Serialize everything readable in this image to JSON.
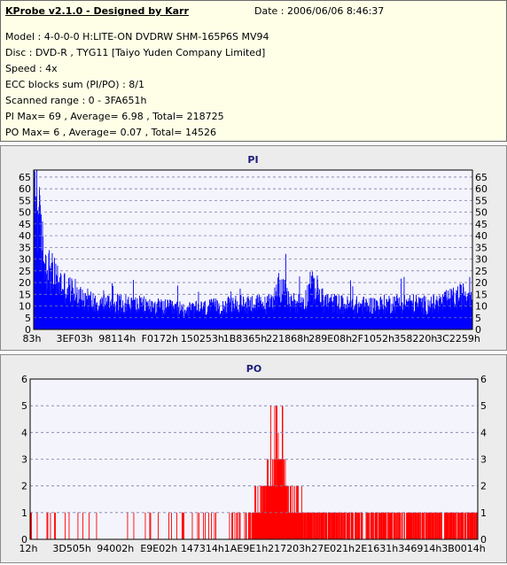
{
  "info": {
    "title": "KProbe v2.1.0 - Designed by Karr",
    "date": "Date : 2006/06/06 8:46:37",
    "lines": [
      "Model : 4-0-0-0 H:LITE-ON DVDRW SHM-165P6S MV94",
      "Disc : DVD-R , TYG11 [Taiyo Yuden Company Limited]",
      "Speed : 4x",
      "ECC blocks sum (PI/PO) : 8/1",
      "Scanned range : 0 - 3FA651h",
      "PI Max= 69 , Average= 6.98 , Total= 218725",
      "PO Max= 6 , Average= 0.07 , Total= 14526"
    ]
  },
  "colors": {
    "info_bg": "#ffffe8",
    "panel_bg": "#ececec",
    "plot_bg": "#f4f4fc",
    "pi_bar": "#0000ff",
    "po_bar": "#ff0000",
    "grid": "#7c7caa",
    "title_text": "#1c1c7c"
  },
  "chart_data": [
    {
      "type": "bar",
      "title": "PI",
      "ylim": [
        0,
        68
      ],
      "yticks": [
        0,
        5,
        10,
        15,
        20,
        25,
        30,
        35,
        40,
        45,
        50,
        55,
        60,
        65
      ],
      "xticks": [
        "83h",
        "3EF03h",
        "98114h",
        "F0172h",
        "150253h",
        "1B8365h",
        "221868h",
        "289E08h",
        "2F1052h",
        "358220h",
        "3C2259h"
      ],
      "grid": "horizontal dashed",
      "profile": [
        [
          0,
          65
        ],
        [
          0.3,
          69
        ],
        [
          0.7,
          62
        ],
        [
          1.2,
          48
        ],
        [
          2,
          36
        ],
        [
          3,
          29
        ],
        [
          4.5,
          24
        ],
        [
          6,
          21
        ],
        [
          8,
          18
        ],
        [
          10,
          16
        ],
        [
          12,
          14
        ],
        [
          14,
          12
        ],
        [
          18,
          12
        ],
        [
          25,
          11
        ],
        [
          30,
          10
        ],
        [
          35,
          9
        ],
        [
          40,
          10
        ],
        [
          45,
          11
        ],
        [
          50,
          12
        ],
        [
          53,
          11
        ],
        [
          55,
          15
        ],
        [
          56,
          21
        ],
        [
          57,
          17
        ],
        [
          58,
          13
        ],
        [
          60,
          12
        ],
        [
          62,
          14
        ],
        [
          63,
          20
        ],
        [
          64.5,
          17
        ],
        [
          66,
          13
        ],
        [
          68,
          12
        ],
        [
          72,
          11
        ],
        [
          78,
          11
        ],
        [
          82,
          12
        ],
        [
          86,
          12
        ],
        [
          90,
          11
        ],
        [
          94,
          13
        ],
        [
          97,
          15
        ],
        [
          100,
          17
        ]
      ]
    },
    {
      "type": "bar",
      "title": "PO",
      "ylim": [
        0,
        6
      ],
      "yticks": [
        0,
        1,
        2,
        3,
        4,
        5,
        6
      ],
      "xticks": [
        "12h",
        "3D505h",
        "94002h",
        "E9E02h",
        "147314h",
        "1AE9E1h",
        "217203h",
        "27E021h",
        "2E1631h",
        "346914h",
        "3B0014h"
      ],
      "grid": "horizontal dashed",
      "profile": [
        [
          0,
          0.25
        ],
        [
          20,
          0.2
        ],
        [
          48,
          0.3
        ],
        [
          50,
          1.3
        ],
        [
          53,
          2.3
        ],
        [
          55,
          3.0
        ],
        [
          56,
          3.5
        ],
        [
          57,
          2.6
        ],
        [
          58,
          1.6
        ],
        [
          60,
          1.3
        ],
        [
          62,
          1.1
        ],
        [
          70,
          1.0
        ],
        [
          80,
          0.9
        ],
        [
          90,
          1.0
        ],
        [
          100,
          1.1
        ]
      ]
    }
  ]
}
